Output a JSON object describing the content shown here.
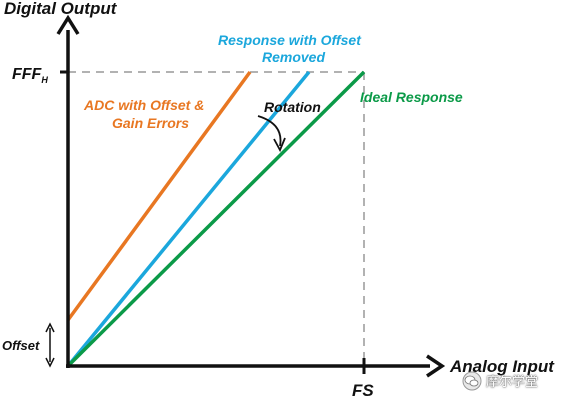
{
  "axes": {
    "y_label": "Digital Output",
    "x_label": "Analog Input",
    "y_tick": "FFF",
    "y_tick_sub": "H",
    "x_tick": "FS",
    "offset_label": "Offset"
  },
  "lines": {
    "orange": {
      "label_line1": "ADC with Offset &",
      "label_line2": "Gain Errors",
      "color": "#e87722"
    },
    "blue": {
      "label_line1": "Response with Offset",
      "label_line2": "Removed",
      "color": "#1ba7dc"
    },
    "green": {
      "label": "Ideal Response",
      "color": "#0b9a48"
    }
  },
  "annotation": {
    "rotation": "Rotation"
  },
  "watermark": {
    "text": "摩尔学堂"
  }
}
